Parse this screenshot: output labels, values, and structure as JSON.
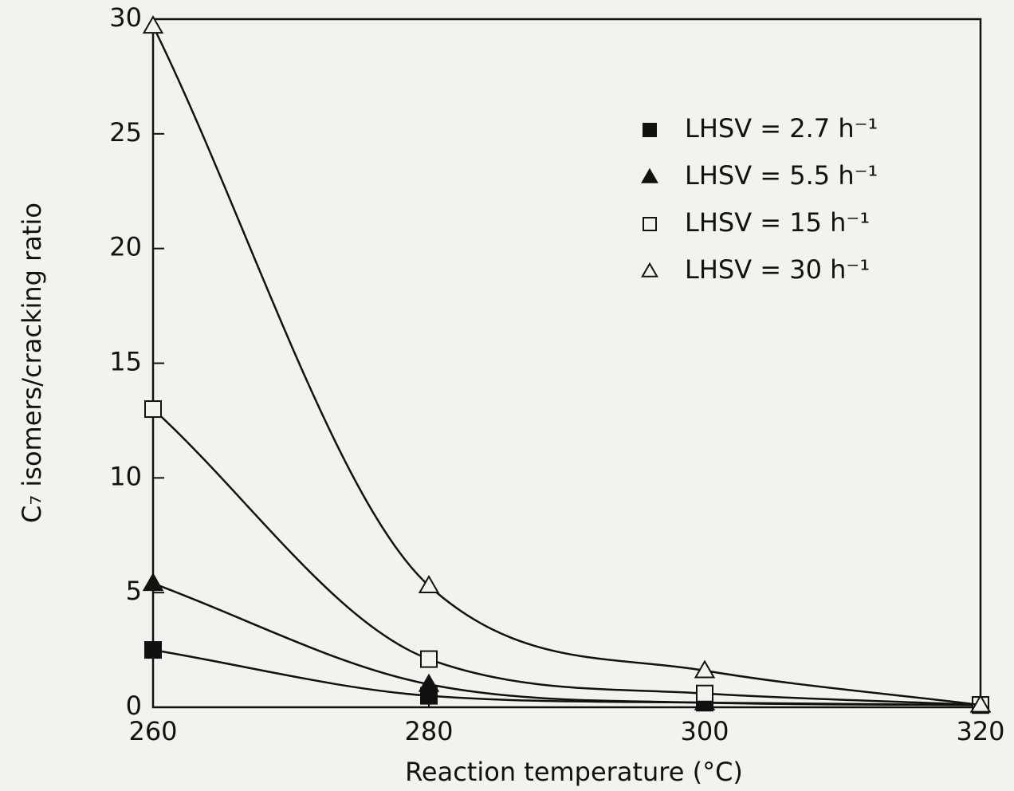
{
  "chart_data": {
    "type": "line",
    "xlabel": "Reaction temperature (°C)",
    "ylabel": "C₇ isomers/cracking ratio",
    "x": [
      260,
      280,
      300,
      320
    ],
    "series": [
      {
        "name": "LHSV = 2.7 h⁻¹",
        "color": "#111111",
        "marker": "square",
        "filled": true,
        "values": [
          2.5,
          0.5,
          0.2,
          0.1
        ]
      },
      {
        "name": "LHSV = 5.5 h⁻¹",
        "color": "#111111",
        "marker": "triangle",
        "filled": true,
        "values": [
          5.4,
          1.0,
          0.2,
          0.1
        ]
      },
      {
        "name": "LHSV = 15 h⁻¹",
        "color": "#111111",
        "marker": "square",
        "filled": false,
        "values": [
          13.0,
          2.1,
          0.6,
          0.1
        ]
      },
      {
        "name": "LHSV = 30 h⁻¹",
        "color": "#111111",
        "marker": "triangle",
        "filled": false,
        "values": [
          29.7,
          5.3,
          1.6,
          0.1
        ]
      }
    ],
    "xlim": [
      260,
      320
    ],
    "xticks": [
      260,
      280,
      300,
      320
    ],
    "ylim": [
      0,
      30
    ],
    "yticks": [
      0,
      5,
      10,
      15,
      20,
      25,
      30
    ],
    "grid": false,
    "legend": "upper right"
  }
}
